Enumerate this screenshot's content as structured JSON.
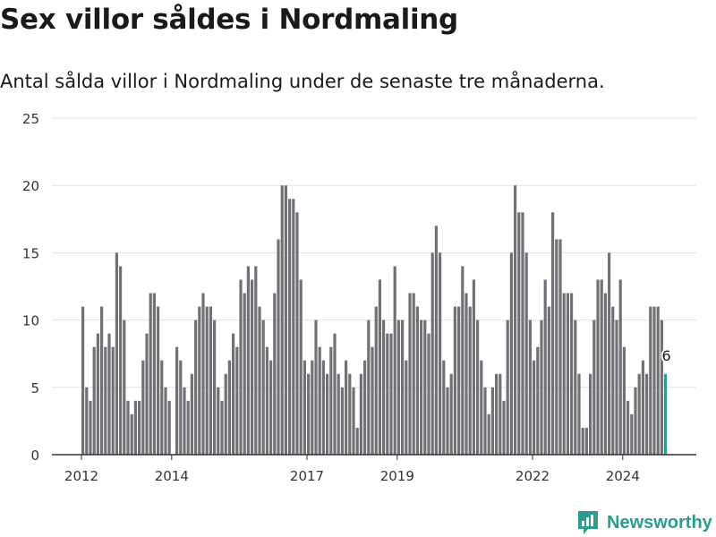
{
  "header": {
    "title": "Sex villor såldes i Nordmaling",
    "subtitle": "Antal sålda villor i Nordmaling under de senaste tre månaderna."
  },
  "brand": {
    "name": "Newsworthy",
    "color": "#2a9d8f",
    "icon": "bar-chart-speech-bubble-icon"
  },
  "chart_data": {
    "type": "bar",
    "title": "Sex villor såldes i Nordmaling",
    "subtitle": "Antal sålda villor i Nordmaling under de senaste tre månaderna.",
    "xlabel": "",
    "ylabel": "",
    "ylim": [
      0,
      25
    ],
    "yticks": [
      0,
      5,
      10,
      15,
      20,
      25
    ],
    "xticks": [
      2012,
      2014,
      2017,
      2019,
      2022,
      2024
    ],
    "x_start_year": 2012,
    "months_per_bar": 1,
    "values": [
      11,
      5,
      4,
      8,
      9,
      11,
      8,
      9,
      8,
      15,
      14,
      10,
      4,
      3,
      4,
      4,
      7,
      9,
      12,
      12,
      11,
      7,
      5,
      4,
      0,
      8,
      7,
      5,
      4,
      6,
      10,
      11,
      12,
      11,
      11,
      10,
      5,
      4,
      6,
      7,
      9,
      8,
      13,
      12,
      14,
      13,
      14,
      11,
      10,
      8,
      7,
      12,
      16,
      20,
      20,
      19,
      19,
      18,
      13,
      7,
      6,
      7,
      10,
      8,
      7,
      6,
      8,
      9,
      6,
      5,
      7,
      6,
      5,
      2,
      6,
      7,
      10,
      8,
      11,
      13,
      10,
      9,
      9,
      14,
      10,
      10,
      7,
      12,
      12,
      11,
      10,
      10,
      9,
      15,
      17,
      15,
      7,
      5,
      6,
      11,
      11,
      14,
      12,
      11,
      13,
      10,
      7,
      5,
      3,
      5,
      6,
      6,
      4,
      10,
      15,
      20,
      18,
      18,
      15,
      10,
      7,
      8,
      10,
      13,
      11,
      18,
      16,
      16,
      12,
      12,
      12,
      10,
      6,
      2,
      2,
      6,
      10,
      13,
      13,
      12,
      15,
      11,
      10,
      13,
      8,
      4,
      3,
      5,
      6,
      7,
      6,
      11,
      11,
      11,
      10,
      6
    ],
    "bar_color": "#717075",
    "highlight_color": "#2a9d8f",
    "highlight_label": "6",
    "grid": true
  }
}
